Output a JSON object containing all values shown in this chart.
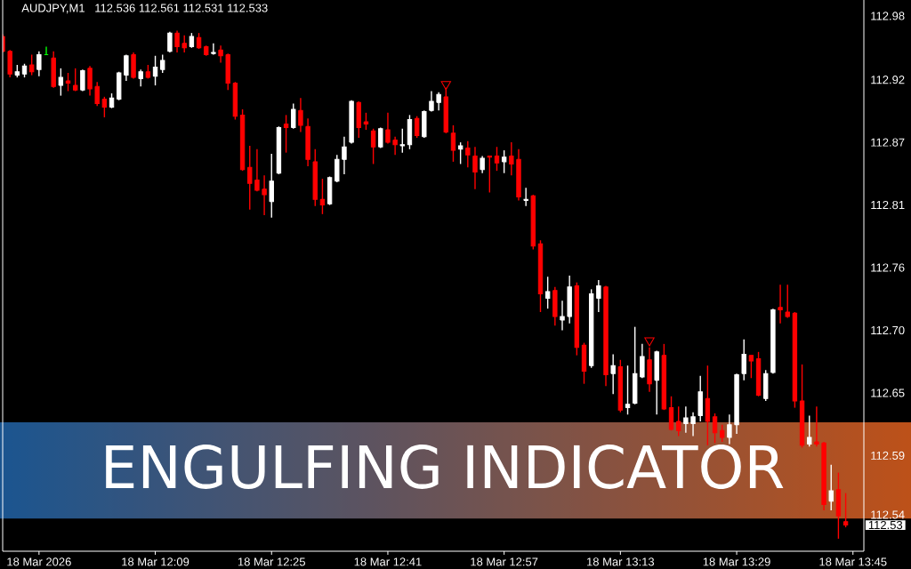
{
  "chart_data": {
    "type": "candlestick",
    "title": "AUDJPY,M1",
    "subtitle": "112.536 112.561 112.531 112.533",
    "annotations": [
      "ENGULFING INDICATOR",
      "112.53"
    ],
    "x": [
      "2026-03-18T11:48",
      "2026-03-18T11:49",
      "2026-03-18T11:50",
      "2026-03-18T11:51",
      "2026-03-18T11:52",
      "2026-03-18T11:53",
      "2026-03-18T11:54",
      "2026-03-18T11:55",
      "2026-03-18T11:56",
      "2026-03-18T11:57",
      "2026-03-18T11:58",
      "2026-03-18T11:59",
      "2026-03-18T12:00",
      "2026-03-18T12:01",
      "2026-03-18T12:02",
      "2026-03-18T12:03",
      "2026-03-18T12:04",
      "2026-03-18T12:05",
      "2026-03-18T12:06",
      "2026-03-18T12:07",
      "2026-03-18T12:08",
      "2026-03-18T12:09",
      "2026-03-18T12:10",
      "2026-03-18T12:11",
      "2026-03-18T12:12",
      "2026-03-18T12:13",
      "2026-03-18T12:14",
      "2026-03-18T12:15",
      "2026-03-18T12:16",
      "2026-03-18T12:17",
      "2026-03-18T12:18",
      "2026-03-18T12:19",
      "2026-03-18T12:20",
      "2026-03-18T12:21",
      "2026-03-18T12:22",
      "2026-03-18T12:23",
      "2026-03-18T12:24",
      "2026-03-18T12:25",
      "2026-03-18T12:26",
      "2026-03-18T12:27",
      "2026-03-18T12:28",
      "2026-03-18T12:29",
      "2026-03-18T12:30",
      "2026-03-18T12:31",
      "2026-03-18T12:32",
      "2026-03-18T12:33",
      "2026-03-18T12:34",
      "2026-03-18T12:35",
      "2026-03-18T12:36",
      "2026-03-18T12:37",
      "2026-03-18T12:38",
      "2026-03-18T12:39",
      "2026-03-18T12:40",
      "2026-03-18T12:41",
      "2026-03-18T12:42",
      "2026-03-18T12:43",
      "2026-03-18T12:44",
      "2026-03-18T12:45",
      "2026-03-18T12:46",
      "2026-03-18T12:47",
      "2026-03-18T12:48",
      "2026-03-18T12:49",
      "2026-03-18T12:50",
      "2026-03-18T12:51",
      "2026-03-18T12:52",
      "2026-03-18T12:53",
      "2026-03-18T12:54",
      "2026-03-18T12:55",
      "2026-03-18T12:56",
      "2026-03-18T12:57",
      "2026-03-18T12:58",
      "2026-03-18T12:59",
      "2026-03-18T13:00",
      "2026-03-18T13:01",
      "2026-03-18T13:02",
      "2026-03-18T13:03",
      "2026-03-18T13:04",
      "2026-03-18T13:05",
      "2026-03-18T13:06",
      "2026-03-18T13:07",
      "2026-03-18T13:08",
      "2026-03-18T13:09",
      "2026-03-18T13:10",
      "2026-03-18T13:11",
      "2026-03-18T13:12",
      "2026-03-18T13:13",
      "2026-03-18T13:14",
      "2026-03-18T13:15",
      "2026-03-18T13:16",
      "2026-03-18T13:17",
      "2026-03-18T13:18",
      "2026-03-18T13:19",
      "2026-03-18T13:20",
      "2026-03-18T13:21",
      "2026-03-18T13:22",
      "2026-03-18T13:23",
      "2026-03-18T13:24",
      "2026-03-18T13:25",
      "2026-03-18T13:26",
      "2026-03-18T13:27",
      "2026-03-18T13:28",
      "2026-03-18T13:29",
      "2026-03-18T13:30",
      "2026-03-18T13:31",
      "2026-03-18T13:32",
      "2026-03-18T13:33",
      "2026-03-18T13:34",
      "2026-03-18T13:35",
      "2026-03-18T13:36",
      "2026-03-18T13:37",
      "2026-03-18T13:38",
      "2026-03-18T13:39",
      "2026-03-18T13:40",
      "2026-03-18T13:41",
      "2026-03-18T13:42",
      "2026-03-18T13:43",
      "2026-03-18T13:44"
    ],
    "ohlc": [
      [
        112.962,
        112.964,
        112.948,
        112.949
      ],
      [
        112.949,
        112.95,
        112.926,
        112.929
      ],
      [
        112.928,
        112.937,
        112.926,
        112.931
      ],
      [
        112.929,
        112.938,
        112.926,
        112.936
      ],
      [
        112.937,
        112.946,
        112.928,
        112.931
      ],
      [
        112.933,
        112.949,
        112.927,
        112.946
      ],
      [
        112.946,
        112.953,
        112.946,
        112.946
      ],
      [
        112.943,
        112.949,
        112.917,
        112.918
      ],
      [
        112.919,
        112.934,
        112.91,
        112.926
      ],
      [
        112.923,
        112.93,
        112.914,
        112.921
      ],
      [
        112.919,
        112.934,
        112.914,
        112.915
      ],
      [
        112.915,
        112.933,
        112.914,
        112.932
      ],
      [
        112.934,
        112.936,
        112.91,
        112.916
      ],
      [
        112.918,
        112.922,
        112.901,
        112.903
      ],
      [
        112.907,
        112.909,
        112.891,
        112.9
      ],
      [
        112.9,
        112.912,
        112.899,
        112.908
      ],
      [
        112.907,
        112.931,
        112.906,
        112.93
      ],
      [
        112.928,
        112.946,
        112.923,
        112.945
      ],
      [
        112.946,
        112.948,
        112.925,
        112.926
      ],
      [
        112.925,
        112.933,
        112.918,
        112.931
      ],
      [
        112.931,
        112.937,
        112.925,
        112.926
      ],
      [
        112.927,
        112.945,
        112.919,
        112.935
      ],
      [
        112.933,
        112.946,
        112.93,
        112.941
      ],
      [
        112.949,
        112.966,
        112.948,
        112.965
      ],
      [
        112.965,
        112.967,
        112.948,
        112.953
      ],
      [
        112.956,
        112.963,
        112.948,
        112.952
      ],
      [
        112.953,
        112.965,
        112.952,
        112.962
      ],
      [
        112.961,
        112.965,
        112.951,
        112.952
      ],
      [
        112.953,
        112.954,
        112.945,
        112.946
      ],
      [
        112.947,
        112.956,
        112.946,
        112.948
      ],
      [
        112.95,
        112.954,
        112.939,
        112.945
      ],
      [
        112.946,
        112.947,
        112.915,
        112.921
      ],
      [
        112.921,
        112.922,
        112.889,
        112.892
      ],
      [
        112.893,
        112.898,
        112.844,
        112.845
      ],
      [
        112.847,
        112.866,
        112.81,
        112.833
      ],
      [
        112.836,
        112.863,
        112.826,
        112.827
      ],
      [
        112.828,
        112.84,
        112.805,
        112.823
      ],
      [
        112.817,
        112.859,
        112.803,
        112.835
      ],
      [
        112.842,
        112.883,
        112.841,
        112.882
      ],
      [
        112.885,
        112.893,
        112.86,
        112.882
      ],
      [
        112.882,
        112.903,
        112.881,
        112.898
      ],
      [
        112.897,
        112.908,
        112.878,
        112.884
      ],
      [
        112.883,
        112.89,
        112.848,
        112.854
      ],
      [
        112.852,
        112.863,
        112.813,
        112.819
      ],
      [
        112.819,
        112.837,
        112.806,
        112.814
      ],
      [
        112.815,
        112.839,
        112.814,
        112.838
      ],
      [
        112.835,
        112.858,
        112.834,
        112.854
      ],
      [
        112.854,
        112.874,
        112.841,
        112.865
      ],
      [
        112.869,
        112.906,
        112.868,
        112.905
      ],
      [
        112.904,
        112.905,
        112.873,
        112.882
      ],
      [
        112.887,
        112.895,
        112.88,
        112.885
      ],
      [
        112.879,
        112.881,
        112.85,
        112.865
      ],
      [
        112.865,
        112.882,
        112.864,
        112.881
      ],
      [
        112.88,
        112.895,
        112.868,
        112.869
      ],
      [
        112.871,
        112.874,
        112.858,
        112.867
      ],
      [
        112.866,
        112.881,
        112.86,
        112.867
      ],
      [
        112.867,
        112.893,
        112.863,
        112.889
      ],
      [
        112.89,
        112.892,
        112.873,
        112.875
      ],
      [
        112.874,
        112.897,
        112.873,
        112.896
      ],
      [
        112.897,
        112.914,
        112.896,
        112.905
      ],
      [
        112.904,
        112.913,
        112.897,
        112.911
      ],
      [
        112.909,
        112.917,
        112.877,
        112.878
      ],
      [
        112.877,
        112.884,
        112.852,
        112.862
      ],
      [
        112.863,
        112.869,
        112.85,
        112.866
      ],
      [
        112.864,
        112.87,
        112.847,
        112.858
      ],
      [
        112.857,
        112.865,
        112.828,
        112.843
      ],
      [
        112.845,
        112.857,
        112.842,
        112.855
      ],
      [
        112.857,
        112.857,
        112.825,
        112.856
      ],
      [
        112.857,
        112.865,
        112.844,
        112.851
      ],
      [
        112.852,
        112.862,
        112.842,
        112.856
      ],
      [
        112.857,
        112.869,
        112.84,
        112.85
      ],
      [
        112.854,
        112.863,
        112.818,
        112.821
      ],
      [
        112.818,
        112.829,
        112.813,
        112.819
      ],
      [
        112.822,
        112.823,
        112.775,
        112.778
      ],
      [
        112.78,
        112.783,
        112.72,
        112.736
      ],
      [
        112.732,
        112.751,
        112.723,
        112.738
      ],
      [
        112.739,
        112.742,
        112.708,
        112.716
      ],
      [
        112.713,
        112.73,
        112.704,
        112.716
      ],
      [
        112.716,
        112.752,
        112.71,
        112.742
      ],
      [
        112.743,
        112.746,
        112.682,
        112.689
      ],
      [
        112.691,
        112.693,
        112.657,
        112.668
      ],
      [
        112.673,
        112.74,
        112.671,
        112.736
      ],
      [
        112.732,
        112.748,
        112.72,
        112.743
      ],
      [
        112.742,
        112.743,
        112.655,
        112.665
      ],
      [
        112.666,
        112.683,
        112.648,
        112.673
      ],
      [
        112.672,
        112.678,
        112.632,
        112.634
      ],
      [
        112.636,
        112.673,
        112.63,
        112.639
      ],
      [
        112.64,
        112.707,
        112.639,
        112.666
      ],
      [
        112.663,
        112.692,
        112.662,
        112.681
      ],
      [
        112.678,
        112.689,
        112.65,
        112.657
      ],
      [
        112.66,
        112.686,
        112.63,
        112.685
      ],
      [
        112.682,
        112.692,
        112.634,
        112.635
      ],
      [
        112.636,
        112.646,
        112.616,
        112.617
      ],
      [
        112.624,
        112.637,
        112.611,
        112.616
      ],
      [
        112.622,
        112.637,
        112.614,
        112.627
      ],
      [
        112.622,
        112.632,
        112.611,
        112.628
      ],
      [
        112.629,
        112.664,
        112.624,
        112.65
      ],
      [
        112.644,
        112.673,
        112.603,
        112.624
      ],
      [
        112.628,
        112.631,
        112.605,
        112.614
      ],
      [
        112.616,
        112.621,
        112.606,
        112.61
      ],
      [
        112.61,
        112.63,
        112.604,
        112.621
      ],
      [
        112.621,
        112.666,
        112.613,
        112.665
      ],
      [
        112.666,
        112.696,
        112.66,
        112.683
      ],
      [
        112.682,
        112.682,
        112.662,
        112.677
      ],
      [
        112.679,
        112.685,
        112.646,
        112.647
      ],
      [
        112.644,
        112.669,
        112.642,
        112.666
      ],
      [
        112.667,
        112.723,
        112.666,
        112.722
      ],
      [
        112.724,
        112.744,
        112.71,
        112.722
      ],
      [
        112.72,
        112.744,
        112.715,
        112.716
      ],
      [
        112.719,
        112.72,
        112.636,
        112.642
      ],
      [
        112.642,
        112.674,
        112.601,
        112.603
      ],
      [
        112.604,
        112.629,
        112.602,
        112.61
      ],
      [
        112.606,
        112.637,
        112.602,
        112.604
      ],
      [
        112.605,
        112.606,
        112.546,
        112.551
      ],
      [
        112.554,
        112.586,
        112.546,
        112.563
      ],
      [
        112.564,
        112.579,
        112.521,
        112.541
      ],
      [
        112.536,
        112.561,
        112.531,
        112.533
      ]
    ],
    "colors": [
      "#ff0000",
      "#ff0000",
      "#ffffff",
      "#ffffff",
      "#ff0000",
      "#ffffff",
      "#00ff00",
      "#ff0000",
      "#ffffff",
      "#ff0000",
      "#ff0000",
      "#ffffff",
      "#ff0000",
      "#ff0000",
      "#ff0000",
      "#ffffff",
      "#ffffff",
      "#ffffff",
      "#ff0000",
      "#ffffff",
      "#ff0000",
      "#ffffff",
      "#ffffff",
      "#ffffff",
      "#ff0000",
      "#ff0000",
      "#ffffff",
      "#ff0000",
      "#ff0000",
      "#ffffff",
      "#ff0000",
      "#ff0000",
      "#ff0000",
      "#ff0000",
      "#ff0000",
      "#ff0000",
      "#ff0000",
      "#ffffff",
      "#ffffff",
      "#ff0000",
      "#ffffff",
      "#ff0000",
      "#ff0000",
      "#ff0000",
      "#ff0000",
      "#ffffff",
      "#ffffff",
      "#ffffff",
      "#ffffff",
      "#ff0000",
      "#ff0000",
      "#ff0000",
      "#ffffff",
      "#ff0000",
      "#ff0000",
      "#ffffff",
      "#ffffff",
      "#ff0000",
      "#ffffff",
      "#ffffff",
      "#ffffff",
      "#ff0000",
      "#ff0000",
      "#ffffff",
      "#ff0000",
      "#ff0000",
      "#ffffff",
      "#ff0000",
      "#ff0000",
      "#ffffff",
      "#ff0000",
      "#ff0000",
      "#ffffff",
      "#ff0000",
      "#ff0000",
      "#ffffff",
      "#ff0000",
      "#ffffff",
      "#ffffff",
      "#ff0000",
      "#ff0000",
      "#ffffff",
      "#ffffff",
      "#ff0000",
      "#ffffff",
      "#ff0000",
      "#ffffff",
      "#ffffff",
      "#ffffff",
      "#ff0000",
      "#ffffff",
      "#ff0000",
      "#ff0000",
      "#ff0000",
      "#ffffff",
      "#ffffff",
      "#ffffff",
      "#ff0000",
      "#ff0000",
      "#ff0000",
      "#ffffff",
      "#ffffff",
      "#ffffff",
      "#ff0000",
      "#ff0000",
      "#ffffff",
      "#ffffff",
      "#ff0000",
      "#ff0000",
      "#ff0000",
      "#ff0000",
      "#ffffff",
      "#ff0000",
      "#ff0000",
      "#ffffff",
      "#ff0000",
      "#ff0000"
    ],
    "series": [
      {
        "type": "scatter",
        "color": "#ff0000",
        "marker": "triangle",
        "x": [
          "2026-03-18T12:49",
          "2026-03-18T13:17"
        ],
        "values": [
          112.92,
          112.695
        ]
      }
    ],
    "xlim": [
      "2026-03-18T11:48",
      "2026-03-18T13:46:30"
    ],
    "xticks": [
      {
        "value": "2026-03-18T11:53",
        "label": "18 Mar 2026"
      },
      {
        "value": "2026-03-18T12:09",
        "label": "18 Mar 12:09"
      },
      {
        "value": "2026-03-18T12:25",
        "label": "18 Mar 12:25"
      },
      {
        "value": "2026-03-18T12:41",
        "label": "18 Mar 12:41"
      },
      {
        "value": "2026-03-18T12:57",
        "label": "18 Mar 12:57"
      },
      {
        "value": "2026-03-18T13:13",
        "label": "18 Mar 13:13"
      },
      {
        "value": "2026-03-18T13:29",
        "label": "18 Mar 13:29"
      },
      {
        "value": "2026-03-18T13:45",
        "label": "18 Mar 13:45"
      }
    ],
    "ylim": [
      112.51,
      112.994
    ],
    "yticks": [
      112.98,
      {
        "value": 112.924,
        "label": "112.92"
      },
      {
        "value": 112.869,
        "label": "112.87"
      },
      {
        "value": 112.814,
        "label": "112.81"
      },
      {
        "value": 112.759,
        "label": "112.76"
      },
      {
        "value": 112.704,
        "label": "112.70"
      },
      {
        "value": 112.649,
        "label": "112.65"
      },
      {
        "value": 112.594,
        "label": "112.59"
      },
      {
        "value": 112.542,
        "label": "112.54"
      }
    ]
  }
}
